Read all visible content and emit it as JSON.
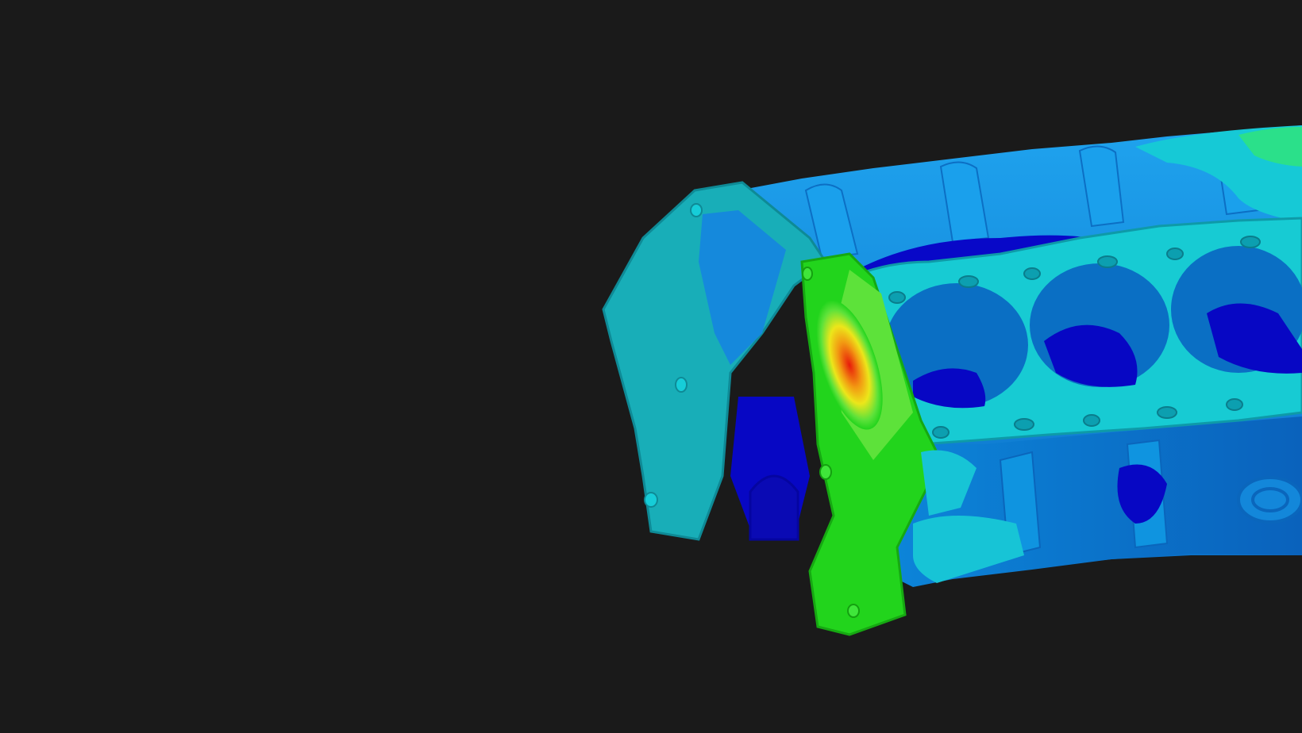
{
  "viewport": {
    "background_color": "#1a1a1a"
  },
  "model": {
    "description_icon": "engine-block-stress-contour",
    "colors": {
      "dark_blue": "#0000c8",
      "blue": "#0b7fd9",
      "light_blue": "#1a96e6",
      "cyan": "#12cfd8",
      "teal": "#18b4b8",
      "green": "#22d41c",
      "light_green": "#5de23a",
      "yellow": "#ece61a",
      "orange": "#f29a12",
      "red": "#e81a0a"
    }
  }
}
